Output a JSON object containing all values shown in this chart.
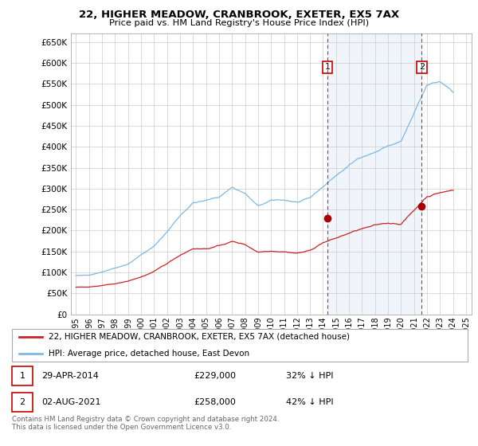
{
  "title": "22, HIGHER MEADOW, CRANBROOK, EXETER, EX5 7AX",
  "subtitle": "Price paid vs. HM Land Registry's House Price Index (HPI)",
  "legend_line1": "22, HIGHER MEADOW, CRANBROOK, EXETER, EX5 7AX (detached house)",
  "legend_line2": "HPI: Average price, detached house, East Devon",
  "footnote": "Contains HM Land Registry data © Crown copyright and database right 2024.\nThis data is licensed under the Open Government Licence v3.0.",
  "sale1_label": "1",
  "sale1_date": "29-APR-2014",
  "sale1_price": "£229,000",
  "sale1_hpi": "32% ↓ HPI",
  "sale2_label": "2",
  "sale2_date": "02-AUG-2021",
  "sale2_price": "£258,000",
  "sale2_hpi": "42% ↓ HPI",
  "hpi_color": "#7cb8e8",
  "price_color": "#cc2222",
  "marker_color": "#aa0000",
  "vline_color": "#cc0000",
  "shade_color": "#ddeeff",
  "background_color": "#ffffff",
  "grid_color": "#cccccc",
  "ylim": [
    0,
    670000
  ],
  "yticks": [
    0,
    50000,
    100000,
    150000,
    200000,
    250000,
    300000,
    350000,
    400000,
    450000,
    500000,
    550000,
    600000,
    650000
  ],
  "sale1_x": 2014.33,
  "sale1_y": 229000,
  "sale2_x": 2021.58,
  "sale2_y": 258000,
  "xlim_left": 1994.6,
  "xlim_right": 2025.4
}
